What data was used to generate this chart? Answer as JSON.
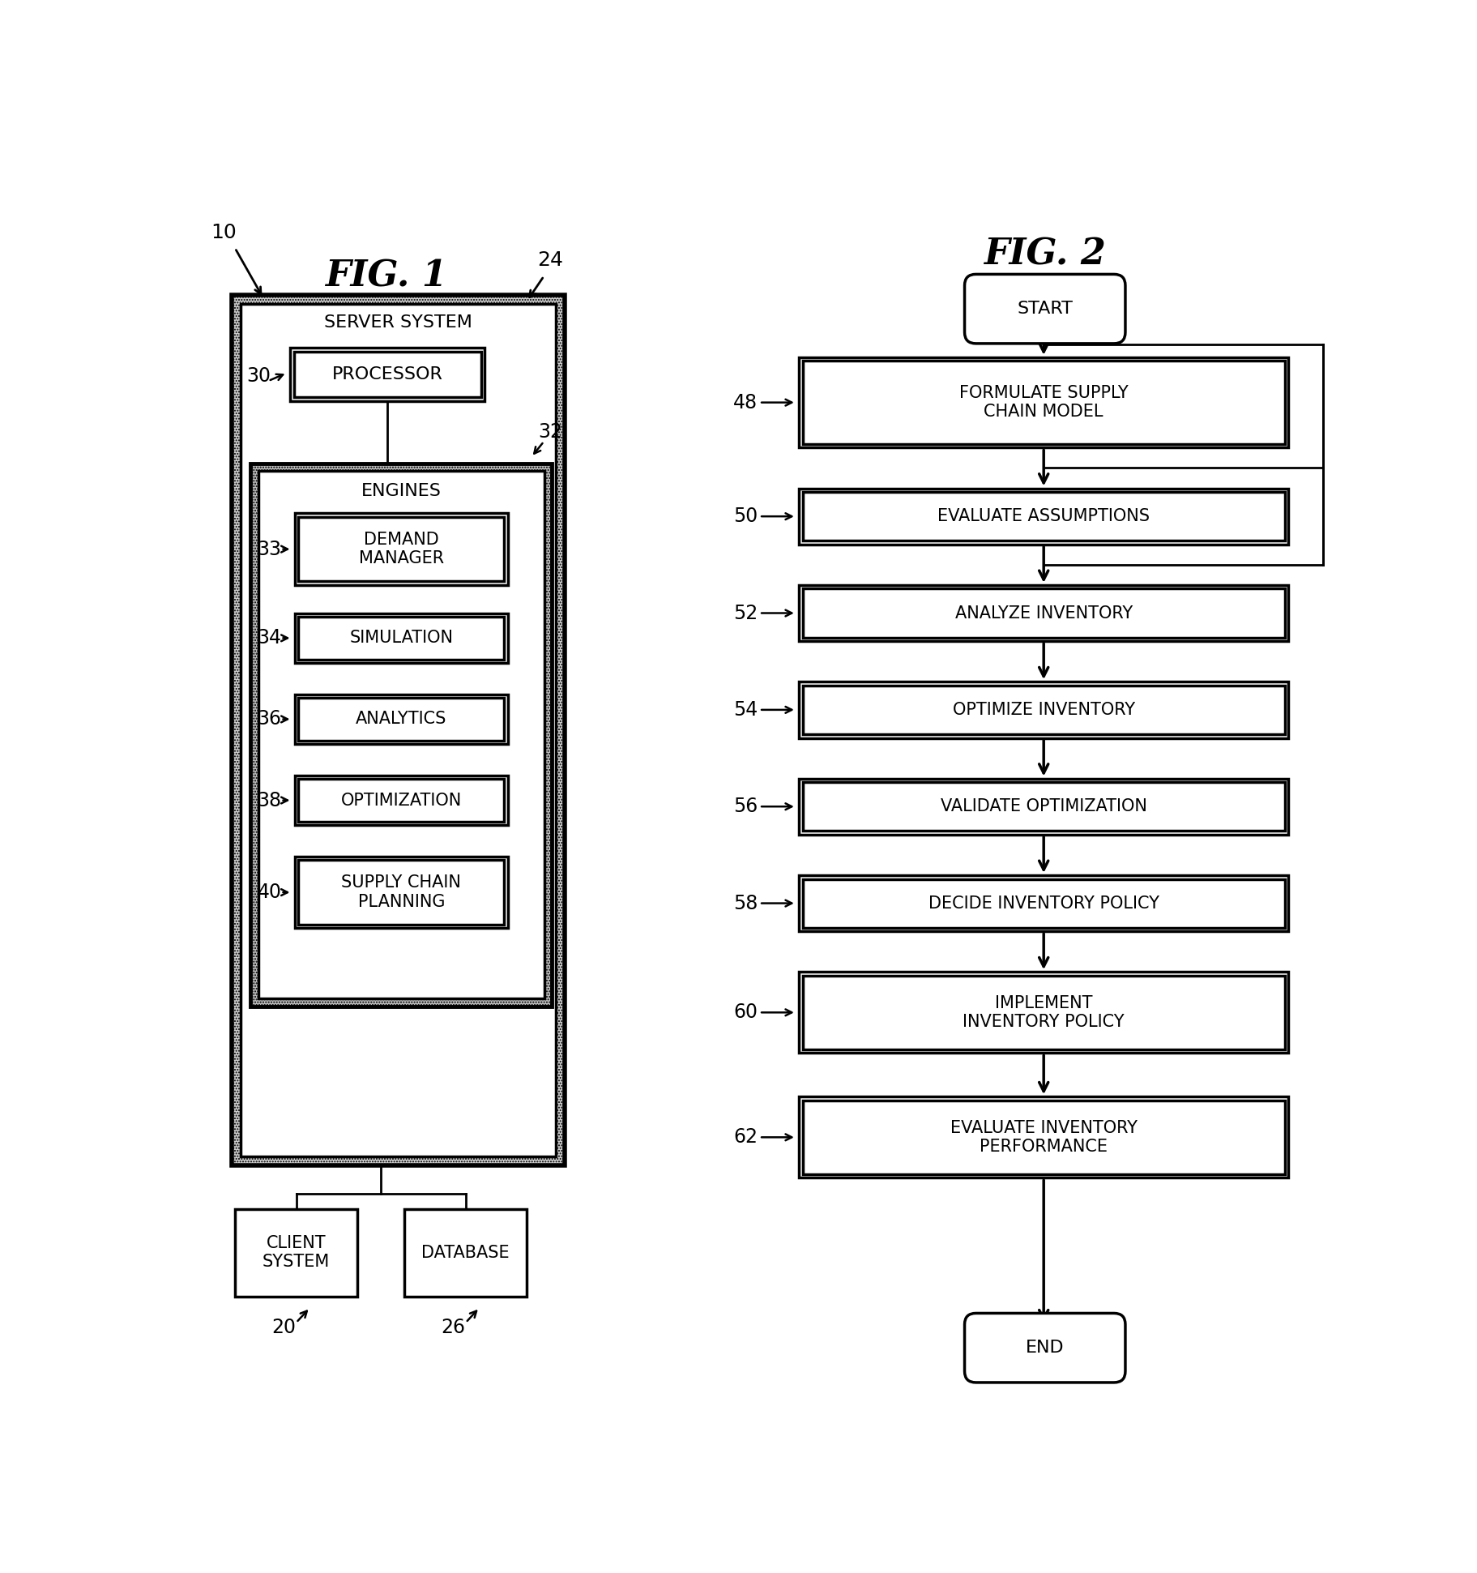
{
  "fig1_title": "FIG. 1",
  "fig2_title": "FIG. 2",
  "label_10": "10",
  "label_24": "24",
  "label_20": "20",
  "label_26": "26",
  "label_30": "30",
  "label_32": "32",
  "label_33": "33",
  "label_34": "34",
  "label_36": "36",
  "label_38": "38",
  "label_40": "40",
  "outer_label": "SERVER SYSTEM",
  "processor_label": "PROCESSOR",
  "engines_label": "ENGINES",
  "engine_boxes": [
    {
      "label": "DEMAND\nMANAGER",
      "ref": "33"
    },
    {
      "label": "SIMULATION",
      "ref": "34"
    },
    {
      "label": "ANALYTICS",
      "ref": "36"
    },
    {
      "label": "OPTIMIZATION",
      "ref": "38"
    },
    {
      "label": "SUPPLY CHAIN\nPLANNING",
      "ref": "40"
    }
  ],
  "client_label": "CLIENT\nSYSTEM",
  "database_label": "DATABASE",
  "flow_start": "START",
  "flow_end": "END",
  "flow_boxes": [
    {
      "label": "FORMULATE SUPPLY\nCHAIN MODEL",
      "ref": "48"
    },
    {
      "label": "EVALUATE ASSUMPTIONS",
      "ref": "50"
    },
    {
      "label": "ANALYZE INVENTORY",
      "ref": "52"
    },
    {
      "label": "OPTIMIZE INVENTORY",
      "ref": "54"
    },
    {
      "label": "VALIDATE OPTIMIZATION",
      "ref": "56"
    },
    {
      "label": "DECIDE INVENTORY POLICY",
      "ref": "58"
    },
    {
      "label": "IMPLEMENT\nINVENTORY POLICY",
      "ref": "60"
    },
    {
      "label": "EVALUATE INVENTORY\nPERFORMANCE",
      "ref": "62"
    }
  ],
  "bg_color": "#ffffff",
  "line_color": "#000000",
  "text_color": "#000000",
  "hatch_bg": "#bbbbbb"
}
